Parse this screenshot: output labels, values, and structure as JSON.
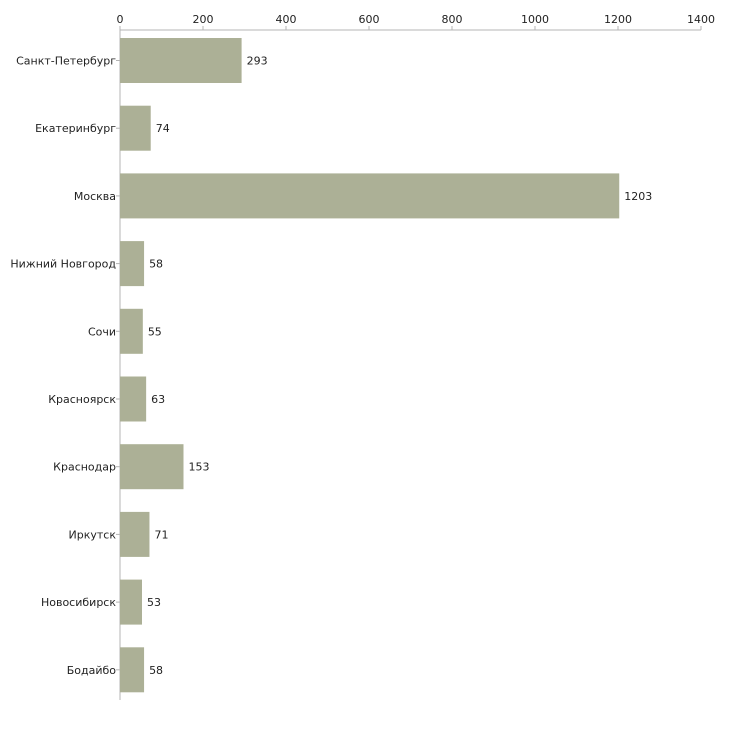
{
  "chart_data": {
    "type": "bar",
    "orientation": "horizontal",
    "title": "",
    "xlabel": "",
    "ylabel": "",
    "xlim": [
      0,
      1400
    ],
    "ticks": [
      0,
      200,
      400,
      600,
      800,
      1000,
      1200,
      1400
    ],
    "tick_labels": [
      "0",
      "200",
      "400",
      "600",
      "800",
      "1000",
      "1200",
      "1400"
    ],
    "axis_position": "top",
    "grid": false,
    "categories": [
      "Санкт-Петербург",
      "Екатеринбург",
      "Москва",
      "Нижний Новгород",
      "Сочи",
      "Красноярск",
      "Краснодар",
      "Иркутск",
      "Новосибирск",
      "Бодайбо"
    ],
    "values": [
      293,
      74,
      1203,
      58,
      55,
      63,
      153,
      71,
      53,
      58
    ],
    "value_labels": [
      "293",
      "74",
      "1203",
      "58",
      "55",
      "63",
      "153",
      "71",
      "53",
      "58"
    ],
    "bar_color": "#acb096",
    "axis_color": "#b4b4b4"
  }
}
